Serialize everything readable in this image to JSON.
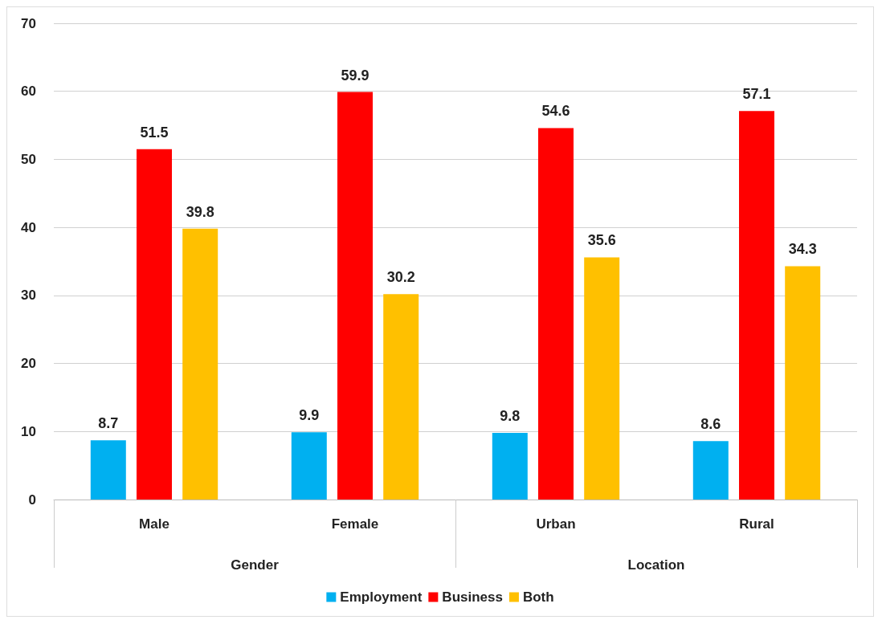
{
  "chart_data": {
    "type": "bar",
    "categories": [
      "Male",
      "Female",
      "Urban",
      "Rural"
    ],
    "series": [
      {
        "name": "Employment",
        "color": "#00b0f0",
        "values": [
          8.7,
          9.9,
          9.8,
          8.6
        ]
      },
      {
        "name": "Business",
        "color": "#ff0000",
        "values": [
          51.5,
          59.9,
          54.6,
          57.1
        ]
      },
      {
        "name": "Both",
        "color": "#ffc000",
        "values": [
          39.8,
          30.2,
          35.6,
          34.3
        ]
      }
    ],
    "ylim": [
      0,
      70
    ],
    "yticks": [
      0,
      10,
      20,
      30,
      40,
      50,
      60,
      70
    ],
    "grid": "y",
    "legend": "bottom",
    "data_labels": true,
    "annotations": [
      "Gender",
      "Location"
    ]
  }
}
